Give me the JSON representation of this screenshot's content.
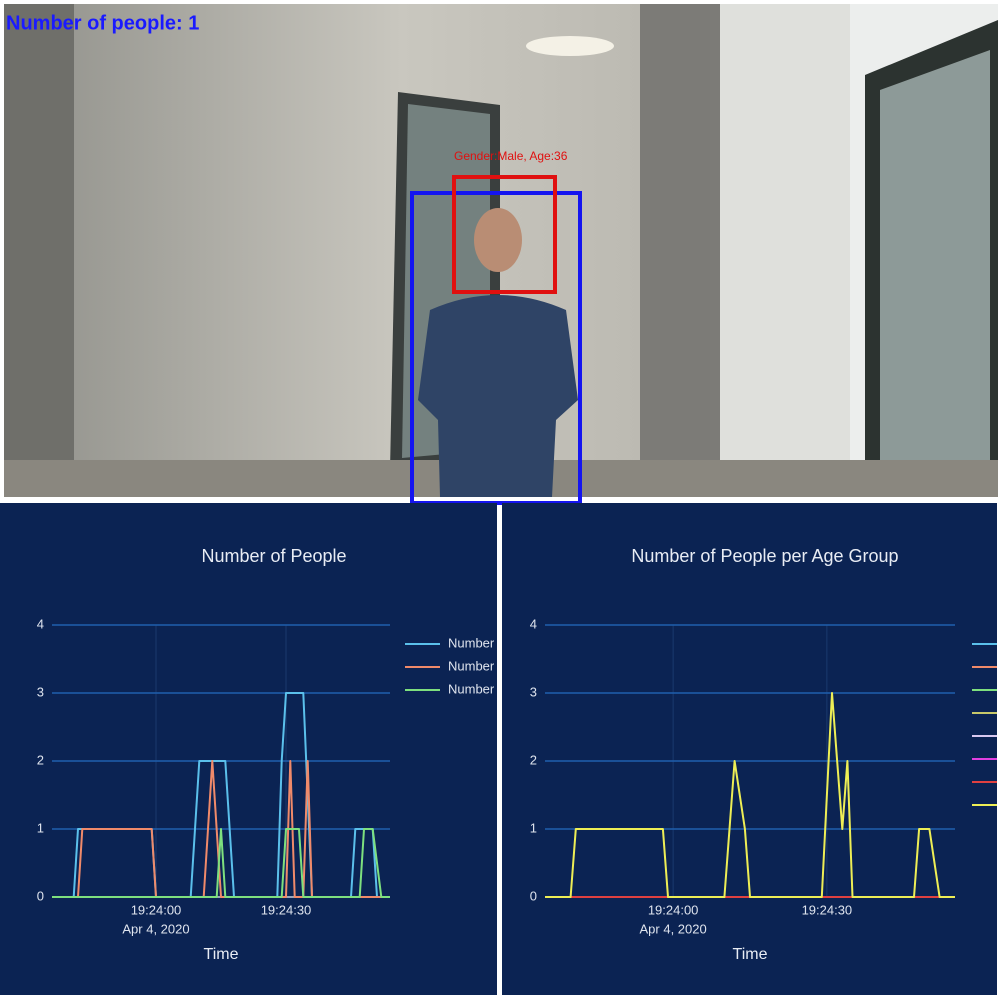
{
  "overlay": {
    "people_count": "Number of people: 1",
    "face_label": "Gender:Male, Age:36"
  },
  "chart_data": [
    {
      "type": "line",
      "title": "Number of People",
      "x_label": "Time",
      "xlim": [
        "19:23:36",
        "19:24:54"
      ],
      "xticks": [
        "19:24:00",
        "19:24:30"
      ],
      "x_date_label": "Apr 4, 2020",
      "ylim": [
        0,
        4
      ],
      "yticks": [
        0,
        1,
        2,
        3,
        4
      ],
      "grid": true,
      "series": [
        {
          "name": "Number",
          "color": "#5bc0eb",
          "x": [
            "19:23:36",
            "19:23:41",
            "19:23:42",
            "19:23:59",
            "19:24:00",
            "19:24:08",
            "19:24:10",
            "19:24:16",
            "19:24:18",
            "19:24:28",
            "19:24:29",
            "19:24:30",
            "19:24:34",
            "19:24:36",
            "19:24:45",
            "19:24:46",
            "19:24:50",
            "19:24:51",
            "19:24:54"
          ],
          "values": [
            0,
            0,
            1,
            1,
            0,
            0,
            2,
            2,
            0,
            0,
            2,
            3,
            3,
            0,
            0,
            1,
            1,
            0,
            0
          ]
        },
        {
          "name": "Number",
          "color": "#f08a6a",
          "x": [
            "19:23:36",
            "19:23:42",
            "19:23:43",
            "19:23:59",
            "19:24:00",
            "19:24:11",
            "19:24:13",
            "19:24:15",
            "19:24:30",
            "19:24:31",
            "19:24:32",
            "19:24:34",
            "19:24:35",
            "19:24:36",
            "19:24:54"
          ],
          "values": [
            0,
            0,
            1,
            1,
            0,
            0,
            2,
            0,
            0,
            2,
            0,
            0,
            2,
            0,
            0
          ]
        },
        {
          "name": "Number",
          "color": "#7ee07e",
          "x": [
            "19:23:36",
            "19:24:14",
            "19:24:15",
            "19:24:16",
            "19:24:29",
            "19:24:30",
            "19:24:33",
            "19:24:34",
            "19:24:47",
            "19:24:48",
            "19:24:50",
            "19:24:52",
            "19:24:54"
          ],
          "values": [
            0,
            0,
            1,
            0,
            0,
            1,
            1,
            0,
            0,
            1,
            1,
            0,
            0
          ]
        }
      ]
    },
    {
      "type": "line",
      "title": "Number of People per Age Group",
      "x_label": "Time",
      "xlim": [
        "19:23:35",
        "19:24:55"
      ],
      "xticks": [
        "19:24:00",
        "19:24:30"
      ],
      "x_date_label": "Apr 4, 2020",
      "ylim": [
        0,
        4
      ],
      "yticks": [
        0,
        1,
        2,
        3,
        4
      ],
      "grid": true,
      "series": [
        {
          "color": "#5bc0eb",
          "x": [
            "19:23:35",
            "19:24:55"
          ],
          "values": [
            0,
            0
          ]
        },
        {
          "color": "#f08a6a",
          "x": [
            "19:23:35",
            "19:24:55"
          ],
          "values": [
            0,
            0
          ]
        },
        {
          "color": "#7ee07e",
          "x": [
            "19:23:35",
            "19:24:55"
          ],
          "values": [
            0,
            0
          ]
        },
        {
          "color": "#c8c86a",
          "x": [
            "19:23:35",
            "19:24:55"
          ],
          "values": [
            0,
            0
          ]
        },
        {
          "color": "#d8c8f0",
          "x": [
            "19:23:35",
            "19:24:55"
          ],
          "values": [
            0,
            0
          ]
        },
        {
          "color": "#e040e0",
          "x": [
            "19:23:35",
            "19:24:55"
          ],
          "values": [
            0,
            0
          ]
        },
        {
          "color": "#e04040",
          "x": [
            "19:23:35",
            "19:24:55"
          ],
          "values": [
            0,
            0
          ]
        },
        {
          "color": "#eeee55",
          "x": [
            "19:23:35",
            "19:23:40",
            "19:23:41",
            "19:23:58",
            "19:23:59",
            "19:24:10",
            "19:24:12",
            "19:24:14",
            "19:24:15",
            "19:24:29",
            "19:24:31",
            "19:24:33",
            "19:24:34",
            "19:24:35",
            "19:24:47",
            "19:24:48",
            "19:24:50",
            "19:24:52",
            "19:24:55"
          ],
          "values": [
            0,
            0,
            1,
            1,
            0,
            0,
            2,
            1,
            0,
            0,
            3,
            1,
            2,
            0,
            0,
            1,
            1,
            0,
            0
          ]
        }
      ]
    }
  ]
}
